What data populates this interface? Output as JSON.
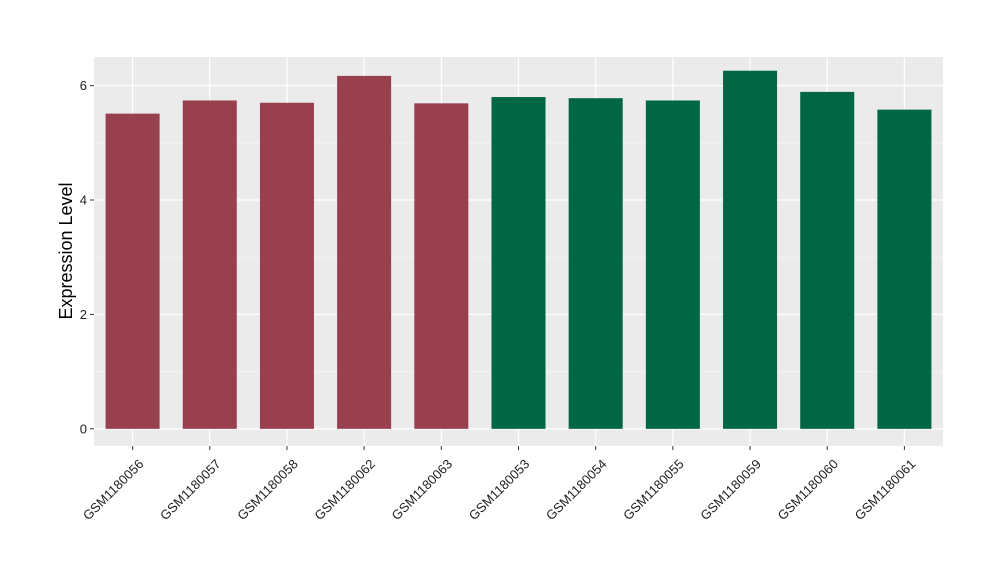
{
  "chart_data": {
    "type": "bar",
    "title": "",
    "xlabel": "",
    "ylabel": "Expression Level",
    "categories": [
      "GSM1180056",
      "GSM1180057",
      "GSM1180058",
      "GSM1180062",
      "GSM1180063",
      "GSM1180053",
      "GSM1180054",
      "GSM1180055",
      "GSM1180059",
      "GSM1180060",
      "GSM1180061"
    ],
    "values": [
      5.51,
      5.74,
      5.7,
      6.17,
      5.69,
      5.8,
      5.78,
      5.74,
      6.26,
      5.89,
      5.58
    ],
    "bar_colors": [
      "#98404e",
      "#98404e",
      "#98404e",
      "#98404e",
      "#98404e",
      "#006644",
      "#006644",
      "#006644",
      "#006644",
      "#006644",
      "#006644"
    ],
    "ylim": [
      -0.3,
      6.5
    ],
    "yticks": [
      0,
      2,
      4,
      6
    ],
    "grid": true,
    "panel_background": "#ebebeb",
    "legend": "none"
  }
}
